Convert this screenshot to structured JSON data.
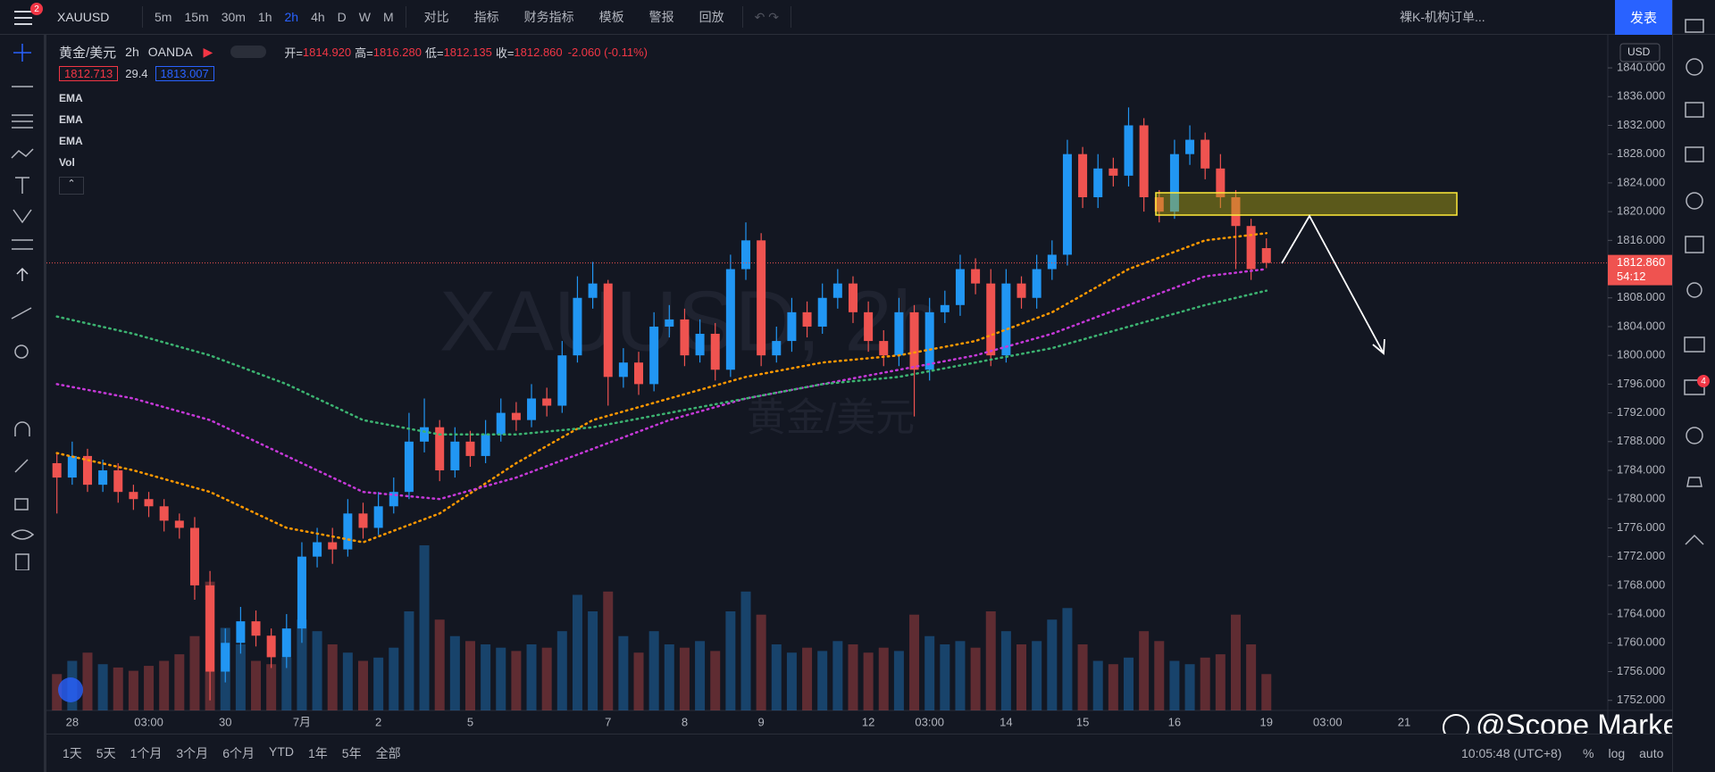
{
  "toolbar": {
    "symbol": "XAUUSD",
    "notification_count": 2,
    "intervals": [
      "5m",
      "15m",
      "30m",
      "1h",
      "2h",
      "4h",
      "D",
      "W",
      "M"
    ],
    "active_interval": "2h",
    "tools": [
      "对比",
      "指标",
      "财务指标",
      "模板",
      "警报",
      "回放"
    ],
    "layout_name": "裸K-机构订单...",
    "publish": "发表"
  },
  "legend": {
    "title": "黄金/美元",
    "interval": "2h",
    "source": "OANDA",
    "ohlc": [
      {
        "label": "开=",
        "value": "1814.920"
      },
      {
        "label": "高=",
        "value": "1816.280"
      },
      {
        "label": "低=",
        "value": "1812.135"
      },
      {
        "label": "收=",
        "value": "1812.860"
      }
    ],
    "change": "-2.060 (-0.11%)",
    "bid": "1812.713",
    "spread": "29.4",
    "ask": "1813.007"
  },
  "watermark": {
    "symbol": "XAUUSD, 2h",
    "name": "黄金/美元"
  },
  "currency": "USD",
  "credit": "@Scope Markets",
  "chat_count": 4,
  "bottom": {
    "ranges": [
      "1天",
      "5天",
      "1个月",
      "3个月",
      "6个月",
      "YTD",
      "1年",
      "5年",
      "全部"
    ],
    "clock": "10:05:48 (UTC+8)",
    "options": [
      "%",
      "log",
      "auto"
    ]
  },
  "chart_data": {
    "type": "candlestick",
    "up_color": "#2196f3",
    "down_color": "#ef5350",
    "grid": false,
    "volume_name": "Vol",
    "categories": [
      null,
      "28",
      null,
      null,
      null,
      null,
      "03:00",
      null,
      null,
      null,
      null,
      "30",
      null,
      null,
      null,
      null,
      "7月",
      null,
      null,
      null,
      null,
      "2",
      null,
      null,
      null,
      null,
      null,
      "5",
      null,
      null,
      null,
      null,
      null,
      null,
      null,
      null,
      "7",
      null,
      null,
      null,
      null,
      "8",
      null,
      null,
      null,
      null,
      "9",
      null,
      null,
      null,
      null,
      null,
      null,
      "12",
      null,
      null,
      null,
      "03:00",
      null,
      null,
      null,
      null,
      "14",
      null,
      null,
      null,
      null,
      "15",
      null,
      null,
      null,
      null,
      null,
      "16",
      null,
      null,
      null,
      null,
      null,
      "19",
      null,
      null,
      null,
      "03:00",
      null,
      null,
      null,
      null,
      "21",
      null
    ],
    "open": [
      1785,
      1783,
      1786,
      1782,
      1784,
      1781,
      1780,
      1779,
      1777,
      1776,
      1768,
      1756,
      1760,
      1763,
      1761,
      1758,
      1762,
      1772,
      1774,
      1773,
      1778,
      1776,
      1779,
      1781,
      1788,
      1790,
      1784,
      1788,
      1786,
      1789,
      1792,
      1791,
      1794,
      1793,
      1800,
      1808,
      1810,
      1797,
      1799,
      1796,
      1804,
      1805,
      1800,
      1803,
      1798,
      1812,
      1816,
      1800,
      1802,
      1806,
      1804,
      1808,
      1810,
      1806,
      1802,
      1800,
      1806,
      1798,
      1806,
      1807,
      1812,
      1810,
      1800,
      1810,
      1808,
      1812,
      1814,
      1828,
      1822,
      1826,
      1825,
      1832,
      1822,
      1820,
      1828,
      1830,
      1826,
      1822,
      1818,
      1814.92,
      null,
      null,
      null,
      null,
      null,
      null,
      null,
      null,
      null,
      null
    ],
    "high": [
      1786.5,
      1788,
      1787,
      1785.5,
      1785,
      1782,
      1781,
      1780,
      1778,
      1777.5,
      1770,
      1762,
      1765,
      1764.5,
      1762,
      1764,
      1774,
      1776,
      1776,
      1780,
      1779.5,
      1781,
      1783,
      1792,
      1794,
      1791,
      1790,
      1789.5,
      1791,
      1794,
      1793.5,
      1796,
      1795.5,
      1802,
      1811,
      1813,
      1810.5,
      1801,
      1800.5,
      1806,
      1807,
      1806.5,
      1805,
      1804.5,
      1814,
      1818.5,
      1817,
      1804,
      1808,
      1807.5,
      1810,
      1812,
      1811,
      1807.5,
      1803.5,
      1808,
      1807,
      1808,
      1809,
      1814,
      1813.5,
      1812,
      1812,
      1811,
      1814,
      1816,
      1830,
      1829,
      1828,
      1827.5,
      1834.5,
      1833,
      1823,
      1830,
      1832,
      1831,
      1828,
      1823,
      1819,
      1816.28,
      null,
      null,
      null,
      null,
      null,
      null,
      null,
      null,
      null,
      null
    ],
    "low": [
      1778,
      1782,
      1781,
      1781,
      1779.5,
      1778.5,
      1777.5,
      1775.5,
      1774.5,
      1766,
      1752,
      1754.5,
      1758.5,
      1759.5,
      1756.5,
      1756.5,
      1760,
      1770.5,
      1771,
      1772,
      1774.5,
      1775,
      1778,
      1780,
      1786.5,
      1782.5,
      1783,
      1784.5,
      1785,
      1788,
      1789.5,
      1790,
      1791.5,
      1792,
      1799,
      1806.5,
      1793,
      1795.5,
      1794.5,
      1795,
      1802.5,
      1798.5,
      1799,
      1796.5,
      1797,
      1810.5,
      1798.5,
      1799,
      1800.5,
      1802.5,
      1803,
      1806.5,
      1804.5,
      1800.5,
      1798.5,
      1798.5,
      1791.5,
      1796.5,
      1804.5,
      1805.5,
      1808.5,
      1798.5,
      1799,
      1806.5,
      1806.5,
      1810.5,
      1812.5,
      1820.5,
      1820.5,
      1823.5,
      1823.5,
      1820,
      1818.5,
      1819,
      1826.5,
      1824.5,
      1820.5,
      1812,
      1810.5,
      1812.135,
      null,
      null,
      null,
      null,
      null,
      null,
      null,
      null,
      null,
      null
    ],
    "close": [
      1783,
      1786,
      1782,
      1784,
      1781,
      1780,
      1779,
      1777,
      1776,
      1768,
      1756,
      1760,
      1763,
      1761,
      1758,
      1762,
      1772,
      1774,
      1773,
      1778,
      1776,
      1779,
      1781,
      1788,
      1790,
      1784,
      1788,
      1786,
      1789,
      1792,
      1791,
      1794,
      1793,
      1800,
      1808,
      1810,
      1797,
      1799,
      1796,
      1804,
      1805,
      1800,
      1803,
      1798,
      1812,
      1816,
      1800,
      1802,
      1806,
      1804,
      1808,
      1810,
      1806,
      1802,
      1800,
      1806,
      1798,
      1806,
      1807,
      1812,
      1810,
      1800,
      1810,
      1808,
      1812,
      1814,
      1828,
      1822,
      1826,
      1825,
      1832,
      1822,
      1820,
      1828,
      1830,
      1826,
      1822,
      1818,
      1812,
      1812.86,
      null,
      null,
      null,
      null,
      null,
      null,
      null,
      null,
      null,
      null
    ],
    "volume": [
      22,
      30,
      35,
      28,
      26,
      24,
      27,
      30,
      34,
      45,
      78,
      50,
      40,
      30,
      28,
      32,
      55,
      48,
      40,
      35,
      30,
      32,
      38,
      60,
      100,
      55,
      45,
      42,
      40,
      38,
      36,
      40,
      38,
      48,
      70,
      60,
      72,
      45,
      35,
      48,
      40,
      38,
      42,
      36,
      60,
      72,
      58,
      40,
      35,
      38,
      36,
      42,
      40,
      35,
      38,
      36,
      58,
      45,
      40,
      42,
      38,
      60,
      48,
      40,
      42,
      55,
      62,
      40,
      30,
      28,
      32,
      48,
      42,
      30,
      28,
      32,
      34,
      58,
      40,
      22,
      null,
      null,
      null,
      null,
      null,
      null,
      null,
      null,
      null,
      null
    ],
    "series": [
      {
        "name": "EMA",
        "color": "#ff9800",
        "x": [
          0,
          5,
          10,
          15,
          20,
          25,
          30,
          35,
          40,
          45,
          50,
          55,
          60,
          65,
          70,
          75,
          79
        ],
        "values": [
          1786.4,
          1784,
          1781,
          1776,
          1774,
          1778,
          1785,
          1791,
          1794,
          1797,
          1799,
          1800,
          1802,
          1806,
          1812,
          1816,
          1817
        ]
      },
      {
        "name": "EMA",
        "color": "#c639d9",
        "x": [
          0,
          5,
          10,
          15,
          20,
          25,
          30,
          35,
          40,
          45,
          50,
          55,
          60,
          65,
          70,
          75,
          79
        ],
        "values": [
          1796,
          1794,
          1791,
          1786,
          1781,
          1780,
          1783,
          1787,
          1791,
          1794,
          1796,
          1798,
          1800,
          1803,
          1807,
          1811,
          1812
        ]
      },
      {
        "name": "EMA",
        "color": "#3cb371",
        "x": [
          0,
          5,
          10,
          15,
          20,
          25,
          30,
          35,
          40,
          45,
          50,
          55,
          60,
          65,
          70,
          75,
          79
        ],
        "values": [
          1805.4,
          1803,
          1800,
          1796,
          1791,
          1789,
          1789,
          1790,
          1792,
          1794,
          1796,
          1797,
          1799,
          1801,
          1804,
          1807,
          1809
        ]
      }
    ],
    "last_price": {
      "value": 1812.86,
      "label": "1812.860"
    },
    "countdown": "54:12",
    "ylim": [
      1750.6,
      1844.6
    ],
    "yticks": [
      {
        "value": 1752,
        "label": "1752.000"
      },
      {
        "value": 1756,
        "label": "1756.000"
      },
      {
        "value": 1760,
        "label": "1760.000"
      },
      {
        "value": 1764,
        "label": "1764.000"
      },
      {
        "value": 1768,
        "label": "1768.000"
      },
      {
        "value": 1772,
        "label": "1772.000"
      },
      {
        "value": 1776,
        "label": "1776.000"
      },
      {
        "value": 1780,
        "label": "1780.000"
      },
      {
        "value": 1784,
        "label": "1784.000"
      },
      {
        "value": 1788,
        "label": "1788.000"
      },
      {
        "value": 1792,
        "label": "1792.000"
      },
      {
        "value": 1796,
        "label": "1796.000"
      },
      {
        "value": 1800,
        "label": "1800.000"
      },
      {
        "value": 1804,
        "label": "1804.000"
      },
      {
        "value": 1808,
        "label": "1808.000"
      },
      {
        "value": 1812,
        "label": "1812.000"
      },
      {
        "value": 1816,
        "label": "1816.000"
      },
      {
        "value": 1820,
        "label": "1820.000"
      },
      {
        "value": 1824,
        "label": "1824.000"
      },
      {
        "value": 1828,
        "label": "1828.000"
      },
      {
        "value": 1832,
        "label": "1832.000"
      },
      {
        "value": 1836,
        "label": "1836.000"
      },
      {
        "value": 1840,
        "label": "1840.000"
      }
    ]
  }
}
